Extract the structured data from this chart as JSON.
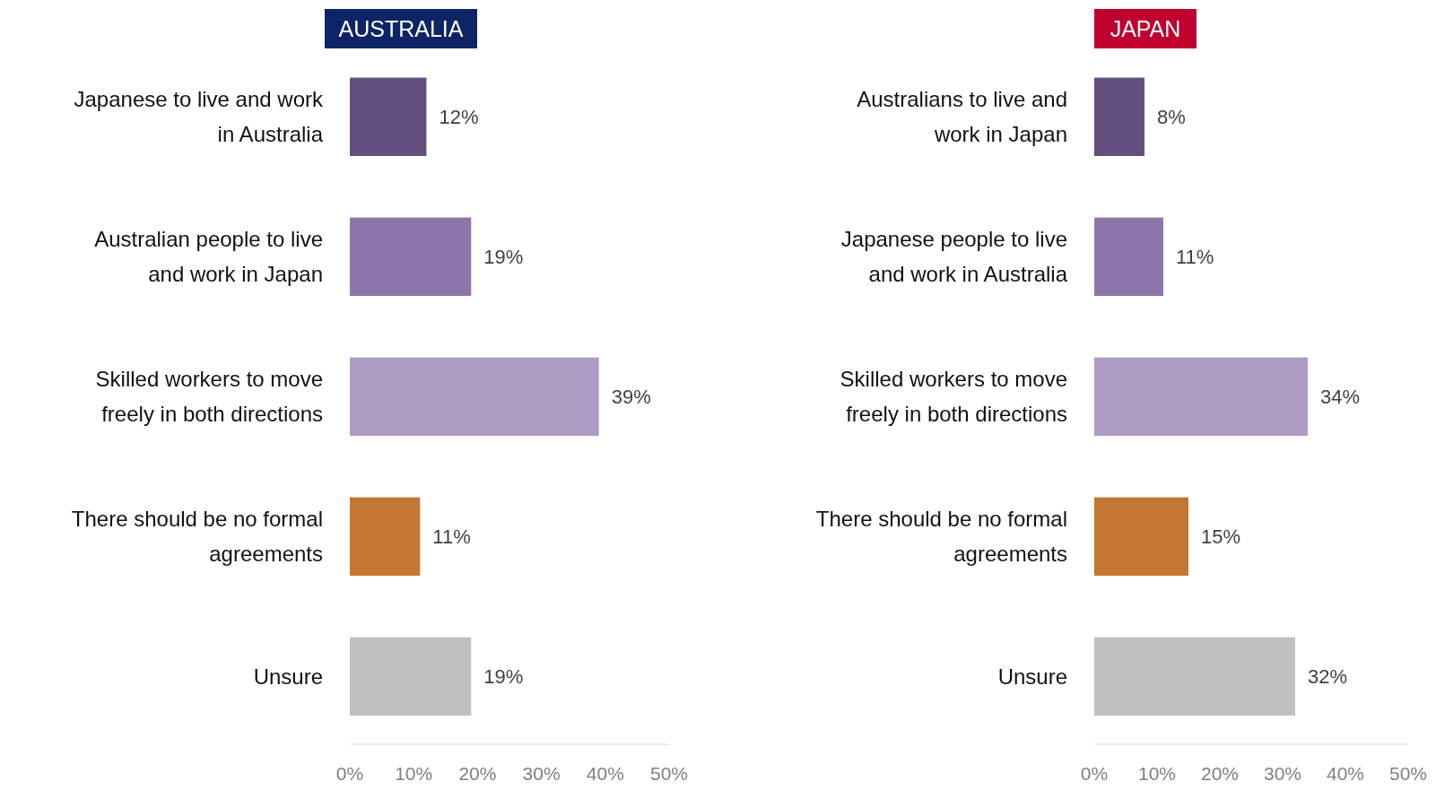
{
  "chart_data": [
    {
      "type": "bar",
      "orientation": "horizontal",
      "title": "AUSTRALIA",
      "categories": [
        "Japanese to live and work in Australia",
        "Australian people to live and work in Japan",
        "Skilled workers to move freely in both directions",
        "There should be no formal agreements",
        "Unsure"
      ],
      "values": [
        12,
        19,
        39,
        11,
        19
      ],
      "colors": [
        "#634f7d",
        "#8c76ab",
        "#ad9bc4",
        "#c47633",
        "#bfbfbf"
      ],
      "value_labels": [
        "12%",
        "19%",
        "39%",
        "11%",
        "19%"
      ],
      "xlim": [
        0,
        50
      ],
      "xticks": [
        {
          "value": 0,
          "label": "0%"
        },
        {
          "value": 10,
          "label": "10%"
        },
        {
          "value": 20,
          "label": "20%"
        },
        {
          "value": 30,
          "label": "30%"
        },
        {
          "value": 40,
          "label": "40%"
        },
        {
          "value": 50,
          "label": "50%"
        }
      ],
      "grid": false
    },
    {
      "type": "bar",
      "orientation": "horizontal",
      "title": "JAPAN",
      "categories": [
        "Australians to live and work in Japan",
        "Japanese people to live and work in Australia",
        "Skilled workers to move freely in both directions",
        "There should be no formal agreements",
        "Unsure"
      ],
      "values": [
        8,
        11,
        34,
        15,
        32
      ],
      "colors": [
        "#634f7d",
        "#8c76ab",
        "#ad9bc4",
        "#c47633",
        "#bfbfbf"
      ],
      "value_labels": [
        "8%",
        "11%",
        "34%",
        "15%",
        "32%"
      ],
      "xlim": [
        0,
        50
      ],
      "xticks": [
        {
          "value": 0,
          "label": "0%"
        },
        {
          "value": 10,
          "label": "10%"
        },
        {
          "value": 20,
          "label": "20%"
        },
        {
          "value": 30,
          "label": "30%"
        },
        {
          "value": 40,
          "label": "40%"
        },
        {
          "value": 50,
          "label": "50%"
        }
      ],
      "grid": false
    }
  ]
}
